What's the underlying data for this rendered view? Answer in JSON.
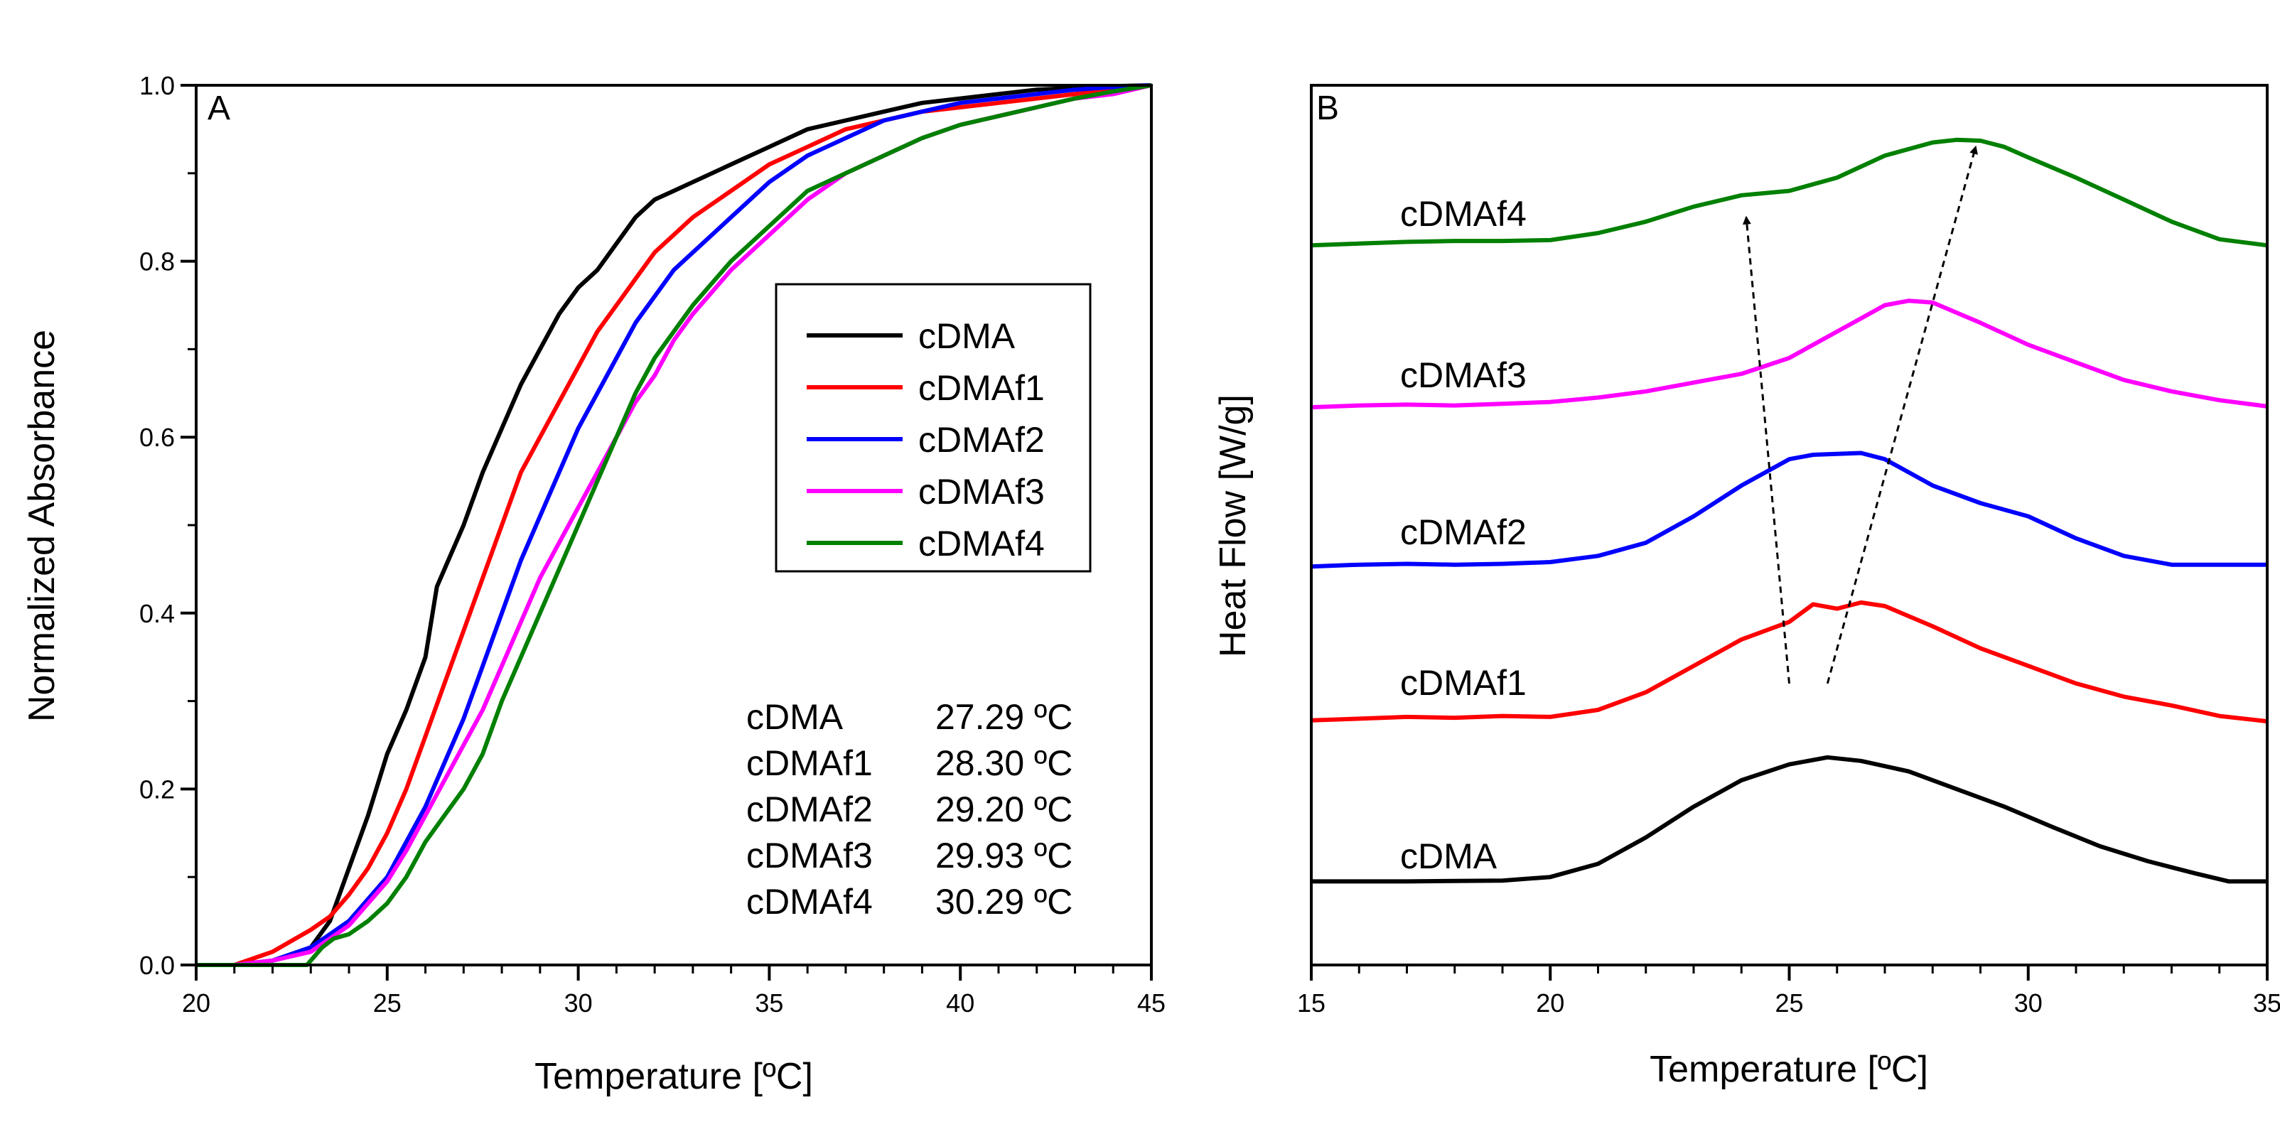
{
  "chart_data": [
    {
      "type": "line",
      "panel": "A",
      "xlabel": "Temperature [ºC]",
      "ylabel": "Normalized Absorbance",
      "xlim": [
        20,
        45
      ],
      "ylim": [
        0.0,
        1.0
      ],
      "xticks": [
        "20",
        "25",
        "30",
        "35",
        "40",
        "45"
      ],
      "yticks": [
        "0.0",
        "0.2",
        "0.4",
        "0.6",
        "0.8",
        "1.0"
      ],
      "legend_position": "center-right",
      "series": [
        {
          "name": "cDMA",
          "color": "#000000",
          "x": [
            20,
            21,
            22,
            23,
            23.5,
            24,
            24.5,
            25,
            25.5,
            26,
            26.3,
            26.6,
            27,
            27.5,
            28,
            28.5,
            29,
            29.5,
            30,
            30.5,
            31,
            31.5,
            32,
            32.5,
            33,
            34,
            35,
            36,
            37,
            38,
            39,
            40,
            41,
            42,
            43,
            44,
            45
          ],
          "y": [
            0,
            0,
            0.005,
            0.02,
            0.05,
            0.11,
            0.17,
            0.24,
            0.29,
            0.35,
            0.43,
            0.46,
            0.5,
            0.56,
            0.61,
            0.66,
            0.7,
            0.74,
            0.77,
            0.79,
            0.82,
            0.85,
            0.87,
            0.88,
            0.89,
            0.91,
            0.93,
            0.95,
            0.96,
            0.97,
            0.98,
            0.985,
            0.99,
            0.995,
            0.997,
            0.999,
            1.0
          ]
        },
        {
          "name": "cDMAf1",
          "color": "#ff0000",
          "x": [
            20,
            21,
            22,
            23,
            23.5,
            24,
            24.5,
            25,
            25.5,
            26,
            26.5,
            27,
            27.5,
            28,
            28.5,
            29,
            29.5,
            30,
            30.5,
            31,
            31.5,
            32,
            32.5,
            33,
            34,
            35,
            36,
            37,
            38,
            39,
            40,
            41,
            42,
            43,
            44,
            45
          ],
          "y": [
            0,
            0,
            0.015,
            0.04,
            0.055,
            0.08,
            0.11,
            0.15,
            0.2,
            0.26,
            0.32,
            0.38,
            0.44,
            0.5,
            0.56,
            0.6,
            0.64,
            0.68,
            0.72,
            0.75,
            0.78,
            0.81,
            0.83,
            0.85,
            0.88,
            0.91,
            0.93,
            0.95,
            0.96,
            0.97,
            0.975,
            0.98,
            0.985,
            0.99,
            0.997,
            1.0
          ]
        },
        {
          "name": "cDMAf2",
          "color": "#0000ff",
          "x": [
            20,
            21,
            22,
            23,
            23.5,
            24,
            24.5,
            25,
            25.5,
            26,
            26.5,
            27,
            27.5,
            28,
            28.5,
            29,
            29.5,
            30,
            30.5,
            31,
            31.5,
            32,
            32.5,
            33,
            34,
            35,
            36,
            37,
            38,
            39,
            40,
            41,
            42,
            43,
            44,
            45
          ],
          "y": [
            0,
            0,
            0.005,
            0.02,
            0.035,
            0.05,
            0.075,
            0.1,
            0.14,
            0.18,
            0.23,
            0.28,
            0.34,
            0.4,
            0.46,
            0.51,
            0.56,
            0.61,
            0.65,
            0.69,
            0.73,
            0.76,
            0.79,
            0.81,
            0.85,
            0.89,
            0.92,
            0.94,
            0.96,
            0.97,
            0.98,
            0.985,
            0.99,
            0.995,
            0.998,
            1.0
          ]
        },
        {
          "name": "cDMAf3",
          "color": "#ff00ff",
          "x": [
            20,
            21,
            22,
            23,
            23.5,
            24,
            24.5,
            25,
            25.5,
            26,
            26.5,
            27,
            27.5,
            28,
            28.5,
            29,
            29.5,
            30,
            30.5,
            31,
            31.5,
            32,
            32.5,
            33,
            34,
            35,
            36,
            37,
            38,
            39,
            40,
            41,
            42,
            43,
            44,
            45
          ],
          "y": [
            0,
            0,
            0.005,
            0.015,
            0.03,
            0.045,
            0.07,
            0.095,
            0.13,
            0.17,
            0.21,
            0.25,
            0.29,
            0.34,
            0.39,
            0.44,
            0.48,
            0.52,
            0.56,
            0.6,
            0.64,
            0.67,
            0.71,
            0.74,
            0.79,
            0.83,
            0.87,
            0.9,
            0.92,
            0.94,
            0.955,
            0.965,
            0.975,
            0.985,
            0.99,
            1.0
          ]
        },
        {
          "name": "cDMAf4",
          "color": "#008000",
          "x": [
            20,
            21,
            22,
            22.9,
            23.3,
            23.6,
            24,
            24.5,
            25,
            25.5,
            26,
            26.5,
            27,
            27.5,
            28,
            28.5,
            29,
            29.5,
            30,
            30.5,
            31,
            31.5,
            32,
            32.5,
            33,
            34,
            35,
            36,
            37,
            38,
            39,
            40,
            41,
            42,
            43,
            44,
            45
          ],
          "y": [
            0,
            0,
            0,
            0,
            0.02,
            0.03,
            0.035,
            0.05,
            0.07,
            0.1,
            0.14,
            0.17,
            0.2,
            0.24,
            0.3,
            0.35,
            0.4,
            0.45,
            0.5,
            0.55,
            0.6,
            0.65,
            0.69,
            0.72,
            0.75,
            0.8,
            0.84,
            0.88,
            0.9,
            0.92,
            0.94,
            0.955,
            0.965,
            0.975,
            0.985,
            0.993,
            1.0
          ]
        }
      ],
      "annotations": {
        "tm_table": [
          {
            "sample": "cDMA",
            "tm": "27.29 ºC"
          },
          {
            "sample": "cDMAf1",
            "tm": "28.30 ºC"
          },
          {
            "sample": "cDMAf2",
            "tm": "29.20 ºC"
          },
          {
            "sample": "cDMAf3",
            "tm": "29.93 ºC"
          },
          {
            "sample": "cDMAf4",
            "tm": "30.29 ºC"
          }
        ]
      }
    },
    {
      "type": "line",
      "panel": "B",
      "xlabel": "Temperature [ºC]",
      "ylabel": "Heat Flow [W/g]",
      "xlim": [
        15,
        35
      ],
      "ylim": [
        0,
        1
      ],
      "xticks": [
        "15",
        "20",
        "25",
        "30",
        "35"
      ],
      "yticks": [],
      "legend_position": "none",
      "series": [
        {
          "name": "cDMA",
          "color": "#000000",
          "x": [
            15,
            17,
            19,
            20,
            21,
            22,
            23,
            24,
            25,
            25.8,
            26.5,
            27.5,
            28.5,
            29.5,
            30.5,
            31.5,
            32.5,
            33.5,
            34.2,
            35
          ],
          "y": [
            0.095,
            0.095,
            0.096,
            0.1,
            0.115,
            0.145,
            0.18,
            0.21,
            0.228,
            0.236,
            0.232,
            0.22,
            0.2,
            0.18,
            0.157,
            0.135,
            0.118,
            0.104,
            0.095,
            0.095
          ]
        },
        {
          "name": "cDMAf1",
          "color": "#ff0000",
          "x": [
            15,
            16,
            17,
            18,
            19,
            20,
            21,
            22,
            23,
            24,
            25,
            25.5,
            26,
            26.5,
            27,
            28,
            29,
            30,
            31,
            32,
            33,
            34,
            35
          ],
          "y": [
            0.278,
            0.28,
            0.282,
            0.281,
            0.283,
            0.282,
            0.29,
            0.31,
            0.34,
            0.37,
            0.39,
            0.41,
            0.405,
            0.412,
            0.408,
            0.385,
            0.36,
            0.34,
            0.32,
            0.305,
            0.295,
            0.283,
            0.277
          ]
        },
        {
          "name": "cDMAf2",
          "color": "#0000ff",
          "x": [
            15,
            16,
            17,
            18,
            19,
            20,
            21,
            22,
            23,
            24,
            25,
            25.5,
            26,
            26.5,
            27,
            28,
            29,
            30,
            31,
            32,
            33,
            34,
            35
          ],
          "y": [
            0.453,
            0.455,
            0.456,
            0.455,
            0.456,
            0.458,
            0.465,
            0.48,
            0.51,
            0.545,
            0.575,
            0.58,
            0.581,
            0.582,
            0.575,
            0.545,
            0.525,
            0.51,
            0.485,
            0.465,
            0.455,
            0.455,
            0.455
          ]
        },
        {
          "name": "cDMAf3",
          "color": "#ff00ff",
          "x": [
            15,
            16,
            17,
            18,
            19,
            20,
            21,
            22,
            23,
            24,
            25,
            26,
            26.5,
            27,
            27.5,
            28,
            29,
            30,
            31,
            32,
            33,
            34,
            35
          ],
          "y": [
            0.634,
            0.636,
            0.637,
            0.636,
            0.638,
            0.64,
            0.645,
            0.652,
            0.662,
            0.672,
            0.69,
            0.72,
            0.735,
            0.75,
            0.755,
            0.753,
            0.73,
            0.705,
            0.685,
            0.665,
            0.652,
            0.642,
            0.635
          ]
        },
        {
          "name": "cDMAf4",
          "color": "#008000",
          "x": [
            15,
            16,
            17,
            18,
            19,
            20,
            21,
            22,
            23,
            24,
            25,
            26,
            27,
            28,
            28.5,
            29,
            29.5,
            30,
            31,
            32,
            33,
            34,
            35
          ],
          "y": [
            0.818,
            0.82,
            0.822,
            0.823,
            0.823,
            0.824,
            0.832,
            0.845,
            0.862,
            0.875,
            0.88,
            0.895,
            0.92,
            0.935,
            0.938,
            0.937,
            0.93,
            0.918,
            0.895,
            0.87,
            0.845,
            0.825,
            0.818
          ]
        }
      ],
      "annotations": {
        "arrows": [
          {
            "from": [
              25.0,
              0.32
            ],
            "to": [
              24.1,
              0.85
            ],
            "style": "dashed"
          },
          {
            "from": [
              25.8,
              0.32
            ],
            "to": [
              28.9,
              0.93
            ],
            "style": "dashed"
          }
        ]
      }
    }
  ]
}
